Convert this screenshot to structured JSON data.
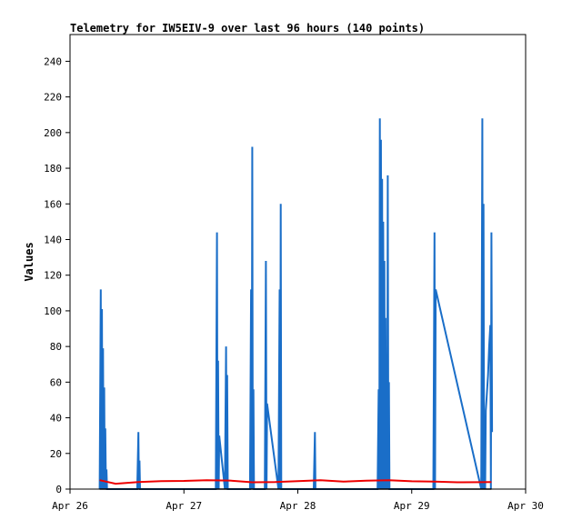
{
  "chart_data": {
    "type": "line",
    "title": "Telemetry for IW5EIV-9 over last 96 hours (140 points)",
    "xlabel": "",
    "ylabel": "Values",
    "ylim": [
      0,
      255
    ],
    "xlim": [
      26,
      30
    ],
    "yticks": [
      0,
      20,
      40,
      60,
      80,
      100,
      120,
      140,
      160,
      180,
      200,
      220,
      240
    ],
    "xticks": [
      {
        "value": 26,
        "label": "Apr 26"
      },
      {
        "value": 27,
        "label": "Apr 27"
      },
      {
        "value": 28,
        "label": "Apr 28"
      },
      {
        "value": 29,
        "label": "Apr 29"
      },
      {
        "value": 30,
        "label": "Apr 30"
      }
    ],
    "grid": false,
    "colors": {
      "blue": "#1a6ec8",
      "red": "#ee0000",
      "black": "#000000"
    },
    "series": [
      {
        "color": "#1a6ec8",
        "points": [
          [
            26.26,
            0
          ],
          [
            26.27,
            112
          ],
          [
            26.275,
            0
          ],
          [
            26.28,
            101
          ],
          [
            26.285,
            0
          ],
          [
            26.29,
            79
          ],
          [
            26.295,
            0
          ],
          [
            26.3,
            57
          ],
          [
            26.305,
            0
          ],
          [
            26.31,
            34
          ],
          [
            26.315,
            0
          ],
          [
            26.32,
            11
          ],
          [
            26.325,
            0
          ],
          [
            26.59,
            0
          ],
          [
            26.6,
            32
          ],
          [
            26.605,
            0
          ],
          [
            26.61,
            16
          ],
          [
            26.615,
            0
          ],
          [
            27.28,
            0
          ],
          [
            27.29,
            144
          ],
          [
            27.295,
            0
          ],
          [
            27.3,
            72
          ],
          [
            27.305,
            0
          ],
          [
            27.31,
            30
          ],
          [
            27.36,
            0
          ],
          [
            27.37,
            80
          ],
          [
            27.375,
            0
          ],
          [
            27.38,
            64
          ],
          [
            27.385,
            0
          ],
          [
            27.58,
            0
          ],
          [
            27.59,
            112
          ],
          [
            27.595,
            0
          ],
          [
            27.6,
            192
          ],
          [
            27.605,
            0
          ],
          [
            27.61,
            56
          ],
          [
            27.615,
            0
          ],
          [
            27.71,
            0
          ],
          [
            27.72,
            128
          ],
          [
            27.725,
            0
          ],
          [
            27.73,
            48
          ],
          [
            27.83,
            0
          ],
          [
            27.84,
            112
          ],
          [
            27.845,
            0
          ],
          [
            27.85,
            160
          ],
          [
            27.855,
            0
          ],
          [
            28.14,
            0
          ],
          [
            28.15,
            32
          ],
          [
            28.155,
            0
          ],
          [
            28.7,
            0
          ],
          [
            28.71,
            56
          ],
          [
            28.715,
            0
          ],
          [
            28.72,
            208
          ],
          [
            28.725,
            0
          ],
          [
            28.73,
            196
          ],
          [
            28.735,
            0
          ],
          [
            28.74,
            174
          ],
          [
            28.745,
            0
          ],
          [
            28.75,
            150
          ],
          [
            28.755,
            0
          ],
          [
            28.76,
            128
          ],
          [
            28.765,
            0
          ],
          [
            28.77,
            96
          ],
          [
            28.775,
            0
          ],
          [
            28.78,
            36
          ],
          [
            28.785,
            0
          ],
          [
            28.79,
            176
          ],
          [
            28.795,
            0
          ],
          [
            28.8,
            60
          ],
          [
            28.805,
            0
          ],
          [
            29.19,
            0
          ],
          [
            29.2,
            144
          ],
          [
            29.205,
            0
          ],
          [
            29.21,
            112
          ],
          [
            29.61,
            0
          ],
          [
            29.62,
            208
          ],
          [
            29.625,
            0
          ],
          [
            29.63,
            160
          ],
          [
            29.635,
            0
          ],
          [
            29.64,
            24
          ],
          [
            29.645,
            0
          ],
          [
            29.65,
            44
          ],
          [
            29.67,
            64
          ],
          [
            29.68,
            80
          ],
          [
            29.69,
            92
          ],
          [
            29.695,
            0
          ],
          [
            29.7,
            144
          ],
          [
            29.705,
            32
          ]
        ]
      },
      {
        "color": "#ee0000",
        "points": [
          [
            26.26,
            5
          ],
          [
            26.4,
            3
          ],
          [
            26.6,
            4
          ],
          [
            26.8,
            4.5
          ],
          [
            27.0,
            4.6
          ],
          [
            27.2,
            5
          ],
          [
            27.4,
            4.8
          ],
          [
            27.6,
            3.8
          ],
          [
            27.8,
            4
          ],
          [
            28.0,
            4.5
          ],
          [
            28.2,
            5
          ],
          [
            28.4,
            4.2
          ],
          [
            28.6,
            4.7
          ],
          [
            28.8,
            5
          ],
          [
            29.0,
            4.4
          ],
          [
            29.2,
            4.2
          ],
          [
            29.4,
            3.8
          ],
          [
            29.6,
            3.9
          ],
          [
            29.7,
            4
          ]
        ]
      },
      {
        "color": "#000000",
        "points": [
          [
            26.26,
            0
          ],
          [
            29.7,
            0
          ]
        ]
      }
    ]
  }
}
